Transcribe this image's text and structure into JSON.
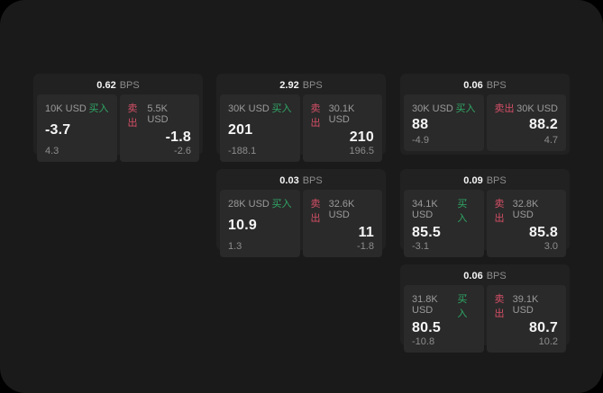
{
  "labels": {
    "bps_suffix": "BPS",
    "buy": "买入",
    "sell": "卖出"
  },
  "colors": {
    "window_bg": "#1a1a1a",
    "card_bg": "#212121",
    "panel_bg": "#2a2a2a",
    "buy_green": "#2fa765",
    "sell_red": "#d44f66",
    "text_primary": "#f5f5f5",
    "text_muted": "#8d8d8d"
  },
  "cards": [
    {
      "bps": "0.62",
      "buy": {
        "size": "10K USD",
        "value": "-3.7",
        "sub": "4.3"
      },
      "sell": {
        "size": "5.5K USD",
        "value": "-1.8",
        "sub": "-2.6"
      }
    },
    {
      "bps": "2.92",
      "buy": {
        "size": "30K USD",
        "value": "201",
        "sub": "-188.1"
      },
      "sell": {
        "size": "30.1K USD",
        "value": "210",
        "sub": "196.5"
      }
    },
    {
      "bps": "0.06",
      "buy": {
        "size": "30K USD",
        "value": "88",
        "sub": "-4.9"
      },
      "sell": {
        "size": "30K USD",
        "value": "88.2",
        "sub": "4.7"
      }
    },
    {
      "bps": "0.03",
      "buy": {
        "size": "28K USD",
        "value": "10.9",
        "sub": "1.3"
      },
      "sell": {
        "size": "32.6K USD",
        "value": "11",
        "sub": "-1.8"
      }
    },
    {
      "bps": "0.09",
      "buy": {
        "size": "34.1K USD",
        "value": "85.5",
        "sub": "-3.1"
      },
      "sell": {
        "size": "32.8K USD",
        "value": "85.8",
        "sub": "3.0"
      }
    },
    {
      "bps": "0.06",
      "buy": {
        "size": "31.8K USD",
        "value": "80.5",
        "sub": "-10.8"
      },
      "sell": {
        "size": "39.1K USD",
        "value": "80.7",
        "sub": "10.2"
      }
    }
  ]
}
